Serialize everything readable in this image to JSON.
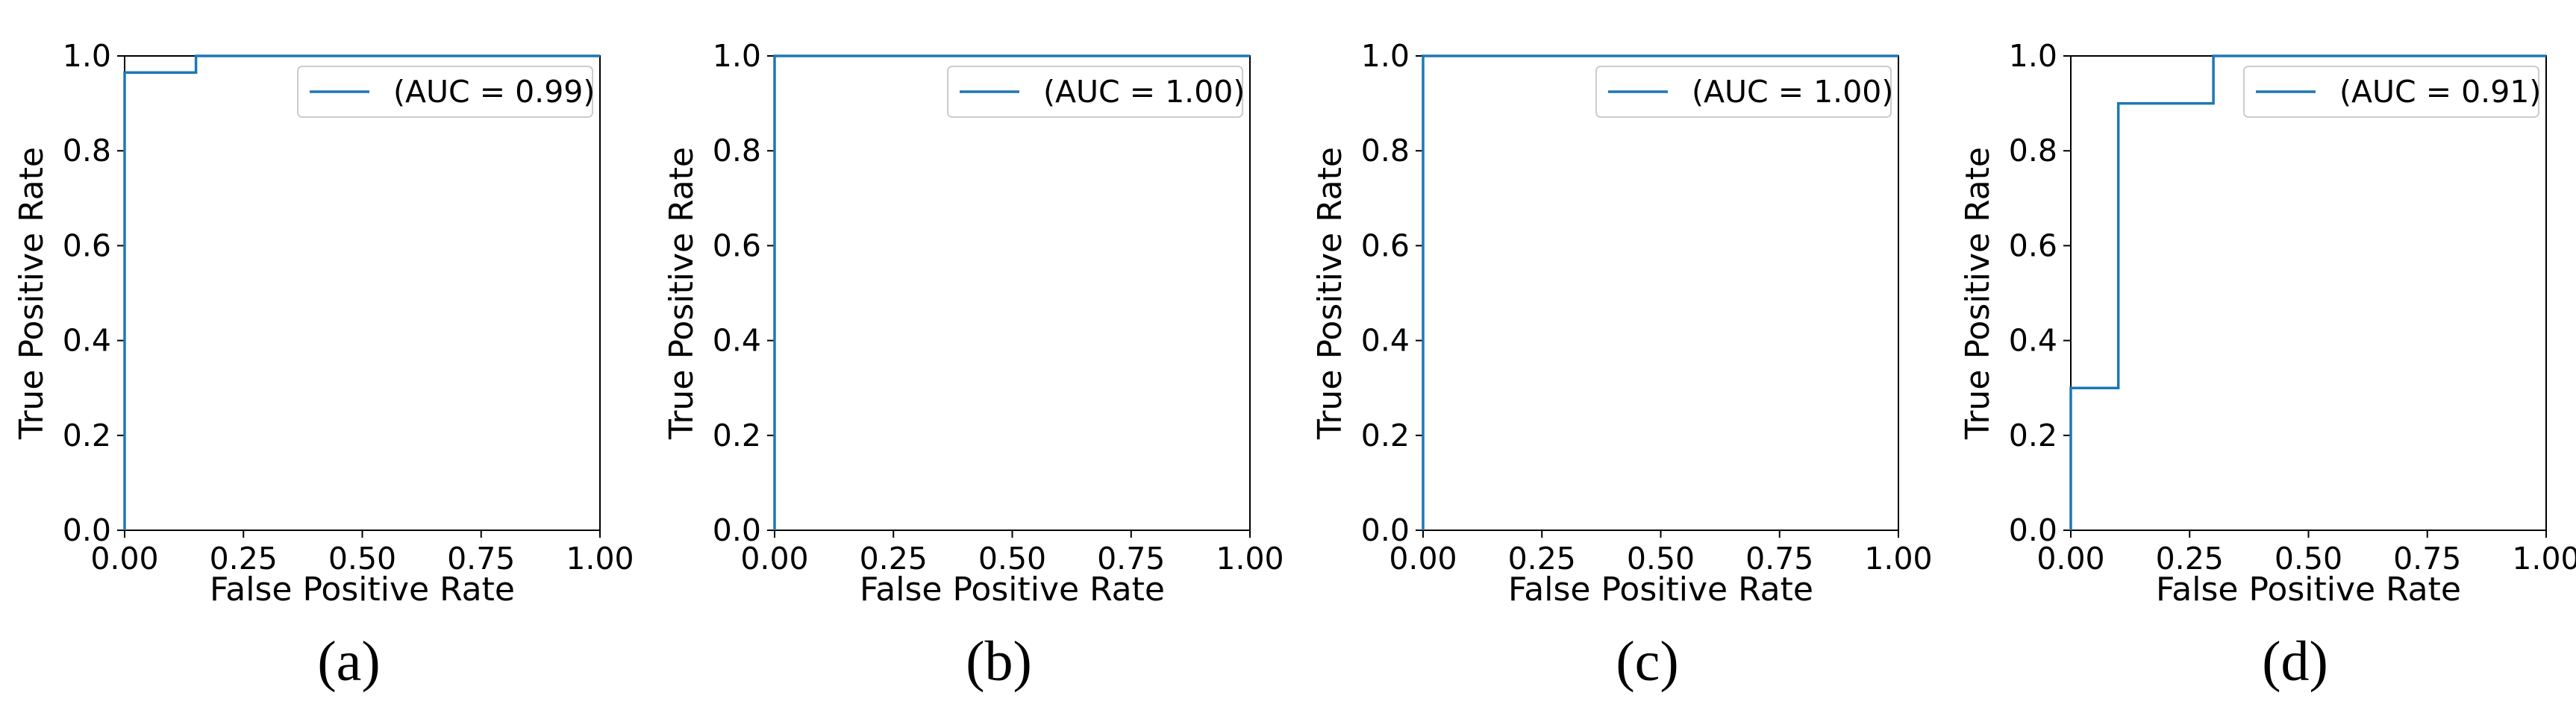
{
  "chart_data": [
    {
      "type": "line",
      "panel_label": "(a)",
      "xlabel": "False Positive Rate",
      "ylabel": "True Positive Rate",
      "xlim": [
        0,
        1
      ],
      "ylim": [
        0,
        1
      ],
      "xticks": [
        "0.00",
        "0.25",
        "0.50",
        "0.75",
        "1.00"
      ],
      "yticks": [
        "0.0",
        "0.2",
        "0.4",
        "0.6",
        "0.8",
        "1.0"
      ],
      "grid": false,
      "legend_position": "top-right",
      "color": "#1f77b4",
      "series": [
        {
          "name": "(AUC = 0.99)",
          "x": [
            0,
            0,
            0.15,
            0.15,
            1
          ],
          "y": [
            0,
            0.965,
            0.965,
            1,
            1
          ]
        }
      ]
    },
    {
      "type": "line",
      "panel_label": "(b)",
      "xlabel": "False Positive Rate",
      "ylabel": "True Positive Rate",
      "xlim": [
        0,
        1
      ],
      "ylim": [
        0,
        1
      ],
      "xticks": [
        "0.00",
        "0.25",
        "0.50",
        "0.75",
        "1.00"
      ],
      "yticks": [
        "0.0",
        "0.2",
        "0.4",
        "0.6",
        "0.8",
        "1.0"
      ],
      "grid": false,
      "legend_position": "top-right",
      "color": "#1f77b4",
      "series": [
        {
          "name": "(AUC = 1.00)",
          "x": [
            0,
            0,
            1
          ],
          "y": [
            0,
            1,
            1
          ]
        }
      ]
    },
    {
      "type": "line",
      "panel_label": "(c)",
      "xlabel": "False Positive Rate",
      "ylabel": "True Positive Rate",
      "xlim": [
        0,
        1
      ],
      "ylim": [
        0,
        1
      ],
      "xticks": [
        "0.00",
        "0.25",
        "0.50",
        "0.75",
        "1.00"
      ],
      "yticks": [
        "0.0",
        "0.2",
        "0.4",
        "0.6",
        "0.8",
        "1.0"
      ],
      "grid": false,
      "legend_position": "top-right",
      "color": "#1f77b4",
      "series": [
        {
          "name": "(AUC = 1.00)",
          "x": [
            0,
            0,
            1
          ],
          "y": [
            0,
            1,
            1
          ]
        }
      ]
    },
    {
      "type": "line",
      "panel_label": "(d)",
      "xlabel": "False Positive Rate",
      "ylabel": "True Positive Rate",
      "xlim": [
        0,
        1
      ],
      "ylim": [
        0,
        1
      ],
      "xticks": [
        "0.00",
        "0.25",
        "0.50",
        "0.75",
        "1.00"
      ],
      "yticks": [
        "0.0",
        "0.2",
        "0.4",
        "0.6",
        "0.8",
        "1.0"
      ],
      "grid": false,
      "legend_position": "top-right",
      "color": "#1f77b4",
      "series": [
        {
          "name": "(AUC = 0.91)",
          "x": [
            0,
            0,
            0.1,
            0.1,
            0.3,
            0.3,
            1
          ],
          "y": [
            0,
            0.3,
            0.3,
            0.9,
            0.9,
            1,
            1
          ]
        }
      ]
    }
  ]
}
